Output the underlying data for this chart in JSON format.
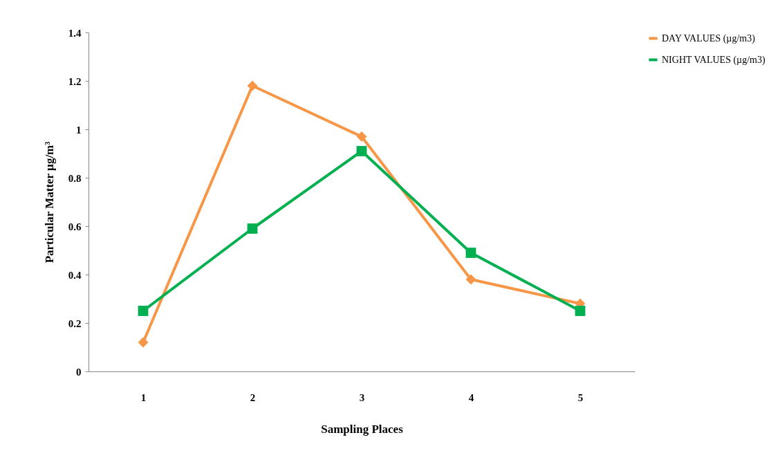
{
  "chart_data": {
    "type": "line",
    "xlabel": "Sampling Places",
    "ylabel": "Particular Matter µg/m³",
    "categories": [
      "1",
      "2",
      "3",
      "4",
      "5"
    ],
    "series": [
      {
        "name": "DAY VALUES (µg/m3)",
        "color": "#f79646",
        "marker": "diamond",
        "values": [
          0.12,
          1.18,
          0.97,
          0.38,
          0.28
        ]
      },
      {
        "name": "NIGHT VALUES (µg/m3)",
        "color": "#00b050",
        "marker": "square",
        "values": [
          0.25,
          0.59,
          0.91,
          0.49,
          0.25
        ]
      }
    ],
    "ylim": [
      0,
      1.4
    ],
    "yticks": [
      0,
      0.2,
      0.4,
      0.6,
      0.8,
      1,
      1.2,
      1.4
    ],
    "grid": false,
    "legend": "right",
    "line_style": "solid"
  }
}
